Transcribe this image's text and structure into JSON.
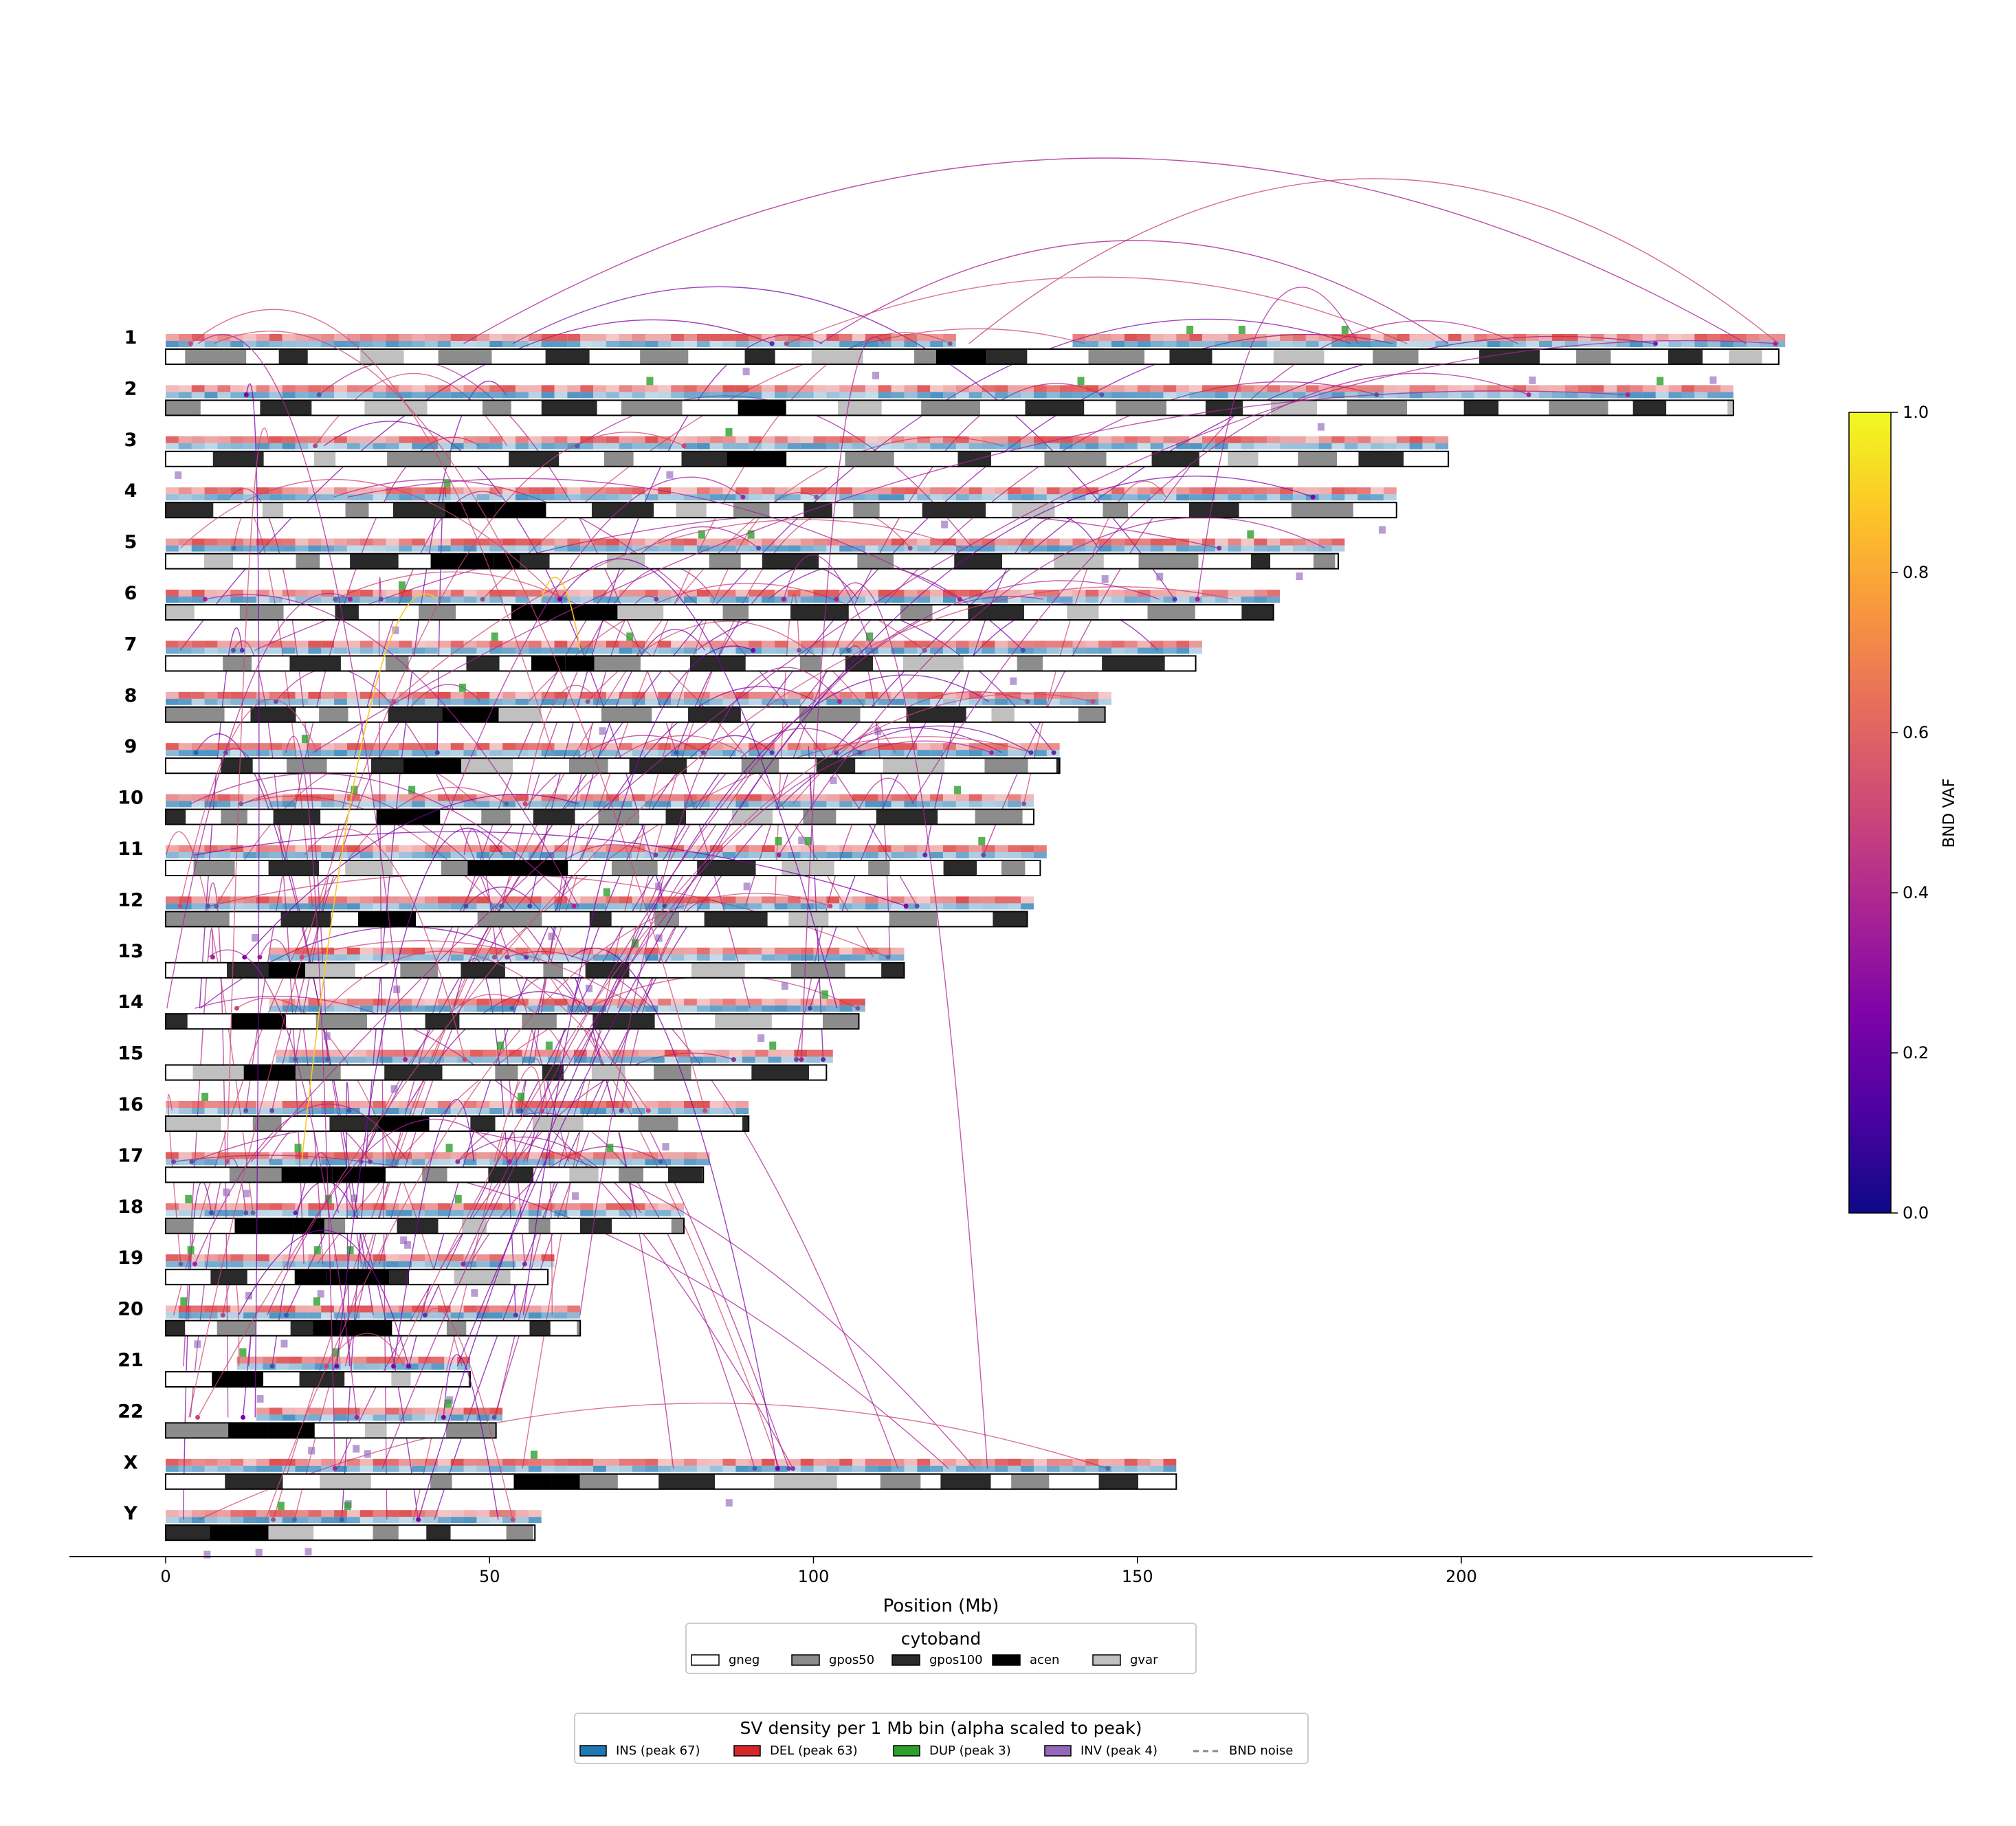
{
  "chart_data": {
    "type": "ideogram",
    "xlabel": "Position (Mb)",
    "x_ticks": [
      0,
      50,
      100,
      150,
      200
    ],
    "xlim": [
      -15,
      253
    ],
    "chromosomes": [
      {
        "name": "1",
        "length": 249,
        "centromere": [
          121,
          126
        ]
      },
      {
        "name": "2",
        "length": 242,
        "centromere": [
          91,
          95
        ]
      },
      {
        "name": "3",
        "length": 198,
        "centromere": [
          88,
          94
        ]
      },
      {
        "name": "4",
        "length": 190,
        "centromere": [
          48,
          52
        ]
      },
      {
        "name": "5",
        "length": 181,
        "centromere": [
          46,
          51
        ]
      },
      {
        "name": "6",
        "length": 171,
        "centromere": [
          58,
          62
        ]
      },
      {
        "name": "7",
        "length": 159,
        "centromere": [
          58,
          62
        ]
      },
      {
        "name": "8",
        "length": 145,
        "centromere": [
          43,
          47
        ]
      },
      {
        "name": "9",
        "length": 138,
        "centromere": [
          42,
          45
        ]
      },
      {
        "name": "10",
        "length": 134,
        "centromere": [
          38,
          42
        ]
      },
      {
        "name": "11",
        "length": 135,
        "centromere": [
          51,
          56
        ]
      },
      {
        "name": "12",
        "length": 133,
        "centromere": [
          33,
          37
        ]
      },
      {
        "name": "13",
        "length": 114,
        "centromere": [
          16,
          18
        ]
      },
      {
        "name": "14",
        "length": 107,
        "centromere": [
          16,
          18
        ]
      },
      {
        "name": "15",
        "length": 102,
        "centromere": [
          17,
          20
        ]
      },
      {
        "name": "16",
        "length": 90,
        "centromere": [
          35,
          38
        ]
      },
      {
        "name": "17",
        "length": 83,
        "centromere": [
          22,
          27
        ]
      },
      {
        "name": "18",
        "length": 80,
        "centromere": [
          15,
          21
        ]
      },
      {
        "name": "19",
        "length": 59,
        "centromere": [
          24,
          28
        ]
      },
      {
        "name": "20",
        "length": 64,
        "centromere": [
          26,
          30
        ]
      },
      {
        "name": "21",
        "length": 47,
        "centromere": [
          11,
          13
        ]
      },
      {
        "name": "22",
        "length": 51,
        "centromere": [
          14,
          17
        ]
      },
      {
        "name": "X",
        "length": 156,
        "centromere": [
          58,
          63
        ]
      },
      {
        "name": "Y",
        "length": 57,
        "centromere": [
          10,
          11
        ]
      }
    ],
    "cytoband_legend": {
      "title": "cytoband",
      "items": [
        {
          "label": "gneg",
          "color": "#ffffff"
        },
        {
          "label": "gpos50",
          "color": "#8c8c8c"
        },
        {
          "label": "gpos100",
          "color": "#2a2a2a"
        },
        {
          "label": "acen",
          "color": "#000000"
        },
        {
          "label": "gvar",
          "color": "#c0c0c0"
        }
      ]
    },
    "sv_legend": {
      "title": "SV density per 1 Mb bin (alpha scaled to peak)",
      "items": [
        {
          "label": "INS (peak 67)",
          "color": "#1f77b4",
          "kind": "patch"
        },
        {
          "label": "DEL (peak 63)",
          "color": "#d62728",
          "kind": "patch"
        },
        {
          "label": "DUP (peak 3)",
          "color": "#2ca02c",
          "kind": "patch"
        },
        {
          "label": "INV (peak 4)",
          "color": "#9467bd",
          "kind": "patch"
        },
        {
          "label": "BND noise",
          "color": "#888888",
          "kind": "dash"
        }
      ]
    },
    "colorbar": {
      "label": "BND VAF",
      "colormap": "plasma",
      "range": [
        0.0,
        1.0
      ],
      "ticks": [
        "0.0",
        "0.2",
        "0.4",
        "0.6",
        "0.8",
        "1.0"
      ]
    },
    "legend_placement": "below axis",
    "colorbar_placement": "right"
  }
}
